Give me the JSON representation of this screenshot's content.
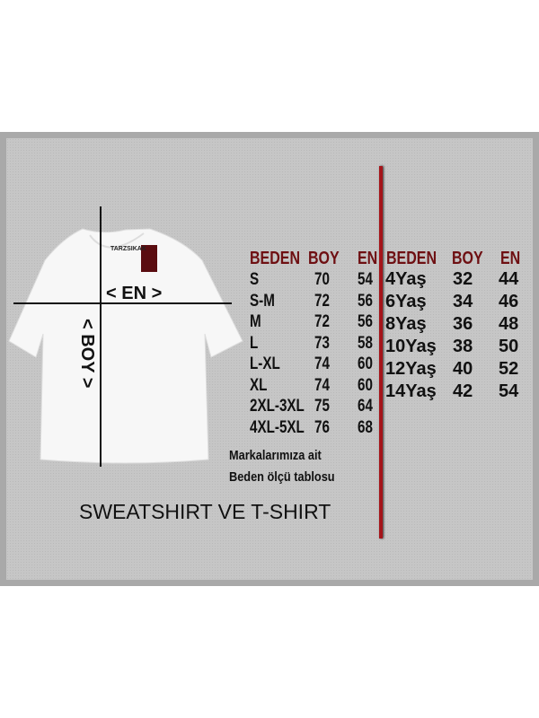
{
  "brand_label": "TARZSIKAK",
  "shirt_labels": {
    "width": "< EN >",
    "length": "< BOY >"
  },
  "adult_table": {
    "headers": [
      "BEDEN",
      "BOY",
      "EN"
    ],
    "rows": [
      [
        "S",
        "70",
        "54"
      ],
      [
        "S-M",
        "72",
        "56"
      ],
      [
        "M",
        "72",
        "56"
      ],
      [
        "L",
        "73",
        "58"
      ],
      [
        "L-XL",
        "74",
        "60"
      ],
      [
        "XL",
        "74",
        "60"
      ],
      [
        "2XL-3XL",
        "75",
        "64"
      ],
      [
        "4XL-5XL",
        "76",
        "68"
      ]
    ]
  },
  "kids_table": {
    "headers": [
      "BEDEN",
      "BOY",
      "EN"
    ],
    "rows": [
      [
        "4Yaş",
        "32",
        "44"
      ],
      [
        "6Yaş",
        "34",
        "46"
      ],
      [
        "8Yaş",
        "36",
        "48"
      ],
      [
        "10Yaş",
        "38",
        "50"
      ],
      [
        "12Yaş",
        "40",
        "52"
      ],
      [
        "14Yaş",
        "42",
        "54"
      ]
    ]
  },
  "note": {
    "line1": "Markalarımıza ait",
    "line2": "Beden ölçü tablosu"
  },
  "title": "SWEATSHIRT VE T-SHIRT",
  "colors": {
    "header": "#6e0f12",
    "divider": "#a5141a",
    "background": "#c6c6c6"
  }
}
